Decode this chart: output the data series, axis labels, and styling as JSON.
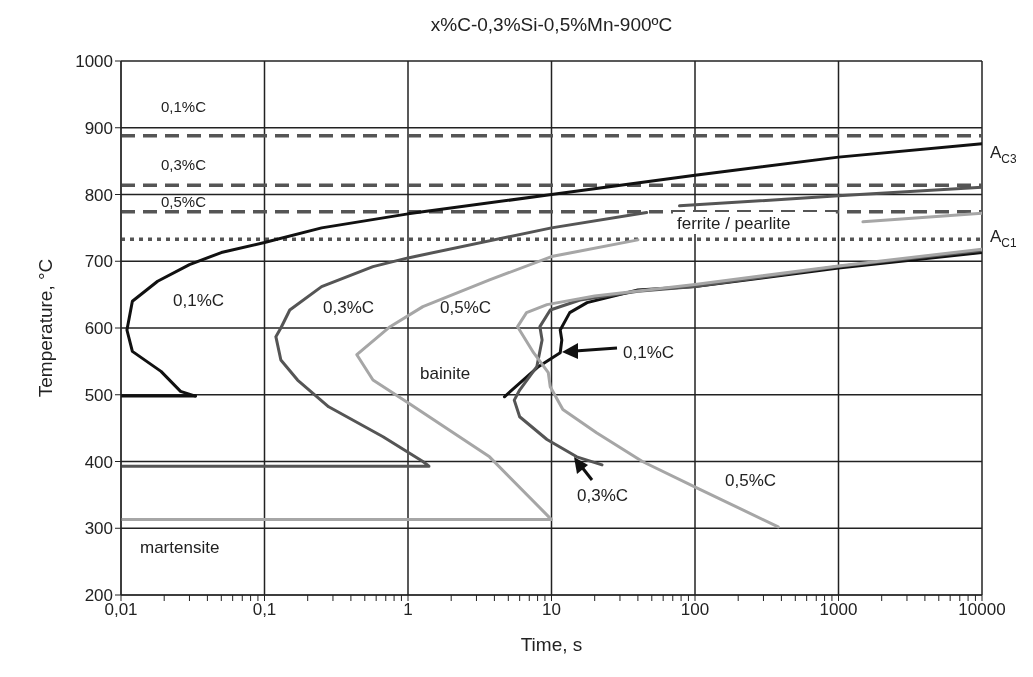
{
  "chart_data": {
    "type": "line",
    "title": "x%C-0,3%Si-0,5%Mn-900ºC",
    "xlabel": "Time, s",
    "ylabel": "Temperature, °C",
    "log": "x",
    "grid": true,
    "marker": "none",
    "line_style": "solid",
    "xlim": [
      0.01,
      10000
    ],
    "ylim": [
      200,
      1000
    ],
    "xticks": [
      {
        "value": 0.01,
        "label": "0,01"
      },
      {
        "value": 0.02,
        "label": null
      },
      {
        "value": 0.03,
        "label": null
      },
      {
        "value": 0.04,
        "label": null
      },
      {
        "value": 0.05,
        "label": null
      },
      {
        "value": 0.06,
        "label": null
      },
      {
        "value": 0.07,
        "label": null
      },
      {
        "value": 0.08,
        "label": null
      },
      {
        "value": 0.09,
        "label": null
      },
      {
        "value": 0.1,
        "label": "0,1"
      },
      {
        "value": 0.2,
        "label": null
      },
      {
        "value": 0.3,
        "label": null
      },
      {
        "value": 0.4,
        "label": null
      },
      {
        "value": 0.5,
        "label": null
      },
      {
        "value": 0.6,
        "label": null
      },
      {
        "value": 0.7,
        "label": null
      },
      {
        "value": 0.8,
        "label": null
      },
      {
        "value": 0.9,
        "label": null
      },
      {
        "value": 1,
        "label": "1"
      },
      {
        "value": 2,
        "label": null
      },
      {
        "value": 3,
        "label": null
      },
      {
        "value": 4,
        "label": null
      },
      {
        "value": 5,
        "label": null
      },
      {
        "value": 6,
        "label": null
      },
      {
        "value": 7,
        "label": null
      },
      {
        "value": 8,
        "label": null
      },
      {
        "value": 9,
        "label": null
      },
      {
        "value": 10,
        "label": "10"
      },
      {
        "value": 20,
        "label": null
      },
      {
        "value": 30,
        "label": null
      },
      {
        "value": 40,
        "label": null
      },
      {
        "value": 50,
        "label": null
      },
      {
        "value": 60,
        "label": null
      },
      {
        "value": 70,
        "label": null
      },
      {
        "value": 80,
        "label": null
      },
      {
        "value": 90,
        "label": null
      },
      {
        "value": 100,
        "label": "100"
      },
      {
        "value": 200,
        "label": null
      },
      {
        "value": 300,
        "label": null
      },
      {
        "value": 400,
        "label": null
      },
      {
        "value": 500,
        "label": null
      },
      {
        "value": 600,
        "label": null
      },
      {
        "value": 700,
        "label": null
      },
      {
        "value": 800,
        "label": null
      },
      {
        "value": 900,
        "label": null
      },
      {
        "value": 1000,
        "label": "1000"
      },
      {
        "value": 2000,
        "label": null
      },
      {
        "value": 3000,
        "label": null
      },
      {
        "value": 4000,
        "label": null
      },
      {
        "value": 5000,
        "label": null
      },
      {
        "value": 6000,
        "label": null
      },
      {
        "value": 7000,
        "label": null
      },
      {
        "value": 8000,
        "label": null
      },
      {
        "value": 9000,
        "label": null
      },
      {
        "value": 10000,
        "label": "10000"
      }
    ],
    "yticks": [
      200,
      300,
      400,
      500,
      600,
      700,
      800,
      900,
      1000
    ],
    "series": [
      {
        "color": "#111111",
        "x": [
          0.01,
          0.033
        ],
        "values": [
          498,
          498
        ]
      },
      {
        "color": "#111111",
        "x": [
          0.033,
          0.026,
          0.019,
          0.012,
          0.011,
          0.012,
          0.018,
          0.03,
          0.05,
          0.1,
          0.25,
          1,
          10,
          100,
          1000,
          10000
        ],
        "values": [
          498,
          505,
          535,
          565,
          597,
          640,
          670,
          695,
          713,
          728,
          750,
          771,
          800,
          829,
          856,
          876
        ]
      },
      {
        "color": "#555555",
        "x": [
          0.01,
          1.4,
          1.27,
          0.67,
          0.28,
          0.17,
          0.13,
          0.12,
          0.13,
          0.15,
          0.25,
          0.57,
          1,
          10,
          46,
          60,
          78,
          1000,
          10000
        ],
        "values": [
          393,
          393,
          400,
          437,
          482,
          522,
          552,
          587,
          600,
          627,
          662,
          692,
          705,
          750,
          773,
          null,
          783,
          798,
          811
        ]
      },
      {
        "color": "#a6a6a6",
        "x": [
          0.01,
          10,
          3.7,
          1,
          0.57,
          0.44,
          0.75,
          1.27,
          3.7,
          10,
          40,
          200,
          1480,
          10000
        ],
        "values": [
          313,
          313,
          407,
          488,
          522,
          560,
          602,
          632,
          672,
          707,
          732,
          null,
          759,
          772
        ]
      },
      {
        "color": "#111111",
        "x": [
          4.7,
          8.1,
          11.5,
          11.8,
          11.5,
          13.4,
          17.7,
          40,
          100,
          1000,
          10000
        ],
        "values": [
          497,
          542,
          563,
          582,
          597,
          623,
          638,
          657,
          662,
          690,
          713
        ]
      },
      {
        "color": "#555555",
        "x": [
          22.5,
          15,
          9.3,
          6,
          5.5,
          6,
          7.9,
          8.6,
          8.3,
          9.8,
          15.8,
          40,
          100,
          1000,
          10000
        ],
        "values": [
          395,
          407,
          433,
          467,
          492,
          507,
          542,
          582,
          602,
          627,
          642,
          655,
          662,
          692,
          716
        ]
      },
      {
        "color": "#a6a6a6",
        "x": [
          380,
          102,
          43,
          20.6,
          12,
          9.8,
          9.5,
          7.5,
          5.8,
          6.7,
          9.3,
          20,
          100,
          1000,
          10000
        ],
        "values": [
          302,
          361,
          400,
          443,
          478,
          512,
          533,
          563,
          602,
          623,
          635,
          648,
          665,
          693,
          718
        ]
      }
    ],
    "ref_lines": [
      {
        "axis": "y",
        "value": 888,
        "label": "0,1%C",
        "color": "#555555",
        "line_style": "dashed"
      },
      {
        "axis": "y",
        "value": 814,
        "label": "0,3%C",
        "color": "#555555",
        "line_style": "dashed"
      },
      {
        "axis": "y",
        "value": 774,
        "label": "0,5%C",
        "color": "#555555",
        "line_style": "dashed"
      },
      {
        "axis": "y",
        "value": 733,
        "color": "#555555",
        "line_style": "dotted"
      }
    ],
    "annotations": [
      "A$_{C3}$",
      "A$_{C1}$",
      "0,1%C",
      "0,3%C",
      "0,5%C",
      "ferrite / pearlite",
      "bainite",
      "martensite",
      "0,1%C",
      "0,3%C",
      "0,5%C"
    ]
  }
}
